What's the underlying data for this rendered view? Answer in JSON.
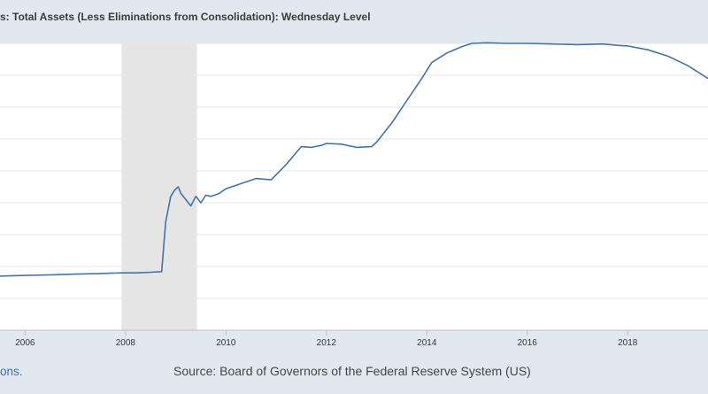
{
  "chart_data": {
    "type": "line",
    "title": "s: Total Assets (Less Eliminations from Consolidation): Wednesday Level",
    "xlabel": "",
    "ylabel": "",
    "x_tick_labels": [
      "2006",
      "2008",
      "2010",
      "2012",
      "2014",
      "2016",
      "2018"
    ],
    "xlim": [
      2005.5,
      2019.6
    ],
    "ylim": [
      0,
      4.5
    ],
    "grid": true,
    "recession_shading": [
      {
        "start": 2007.92,
        "end": 2009.42
      }
    ],
    "series": [
      {
        "color": "#4572a7",
        "x": [
          2005.5,
          2006.0,
          2006.5,
          2007.0,
          2007.5,
          2007.92,
          2008.2,
          2008.5,
          2008.72,
          2008.8,
          2008.9,
          2008.98,
          2009.05,
          2009.1,
          2009.2,
          2009.3,
          2009.4,
          2009.5,
          2009.6,
          2009.7,
          2009.85,
          2010.0,
          2010.3,
          2010.6,
          2010.9,
          2011.2,
          2011.5,
          2011.7,
          2011.9,
          2012.0,
          2012.3,
          2012.6,
          2012.9,
          2013.0,
          2013.3,
          2013.6,
          2013.9,
          2014.1,
          2014.4,
          2014.7,
          2014.9,
          2015.2,
          2015.6,
          2016.0,
          2016.5,
          2017.0,
          2017.5,
          2017.8,
          2018.0,
          2018.4,
          2018.8,
          2019.2,
          2019.6
        ],
        "values": [
          0.85,
          0.86,
          0.87,
          0.88,
          0.89,
          0.9,
          0.9,
          0.91,
          0.92,
          1.7,
          2.1,
          2.2,
          2.25,
          2.15,
          2.05,
          1.95,
          2.1,
          2.0,
          2.12,
          2.1,
          2.14,
          2.22,
          2.3,
          2.38,
          2.36,
          2.6,
          2.88,
          2.87,
          2.9,
          2.93,
          2.92,
          2.87,
          2.88,
          2.95,
          3.25,
          3.6,
          3.95,
          4.2,
          4.35,
          4.45,
          4.5,
          4.51,
          4.5,
          4.5,
          4.49,
          4.48,
          4.49,
          4.47,
          4.46,
          4.4,
          4.3,
          4.15,
          3.95
        ]
      }
    ]
  },
  "footer": {
    "left_text": "ons.",
    "source_text": "Source: Board of Governors of the Federal Reserve System (US)"
  }
}
